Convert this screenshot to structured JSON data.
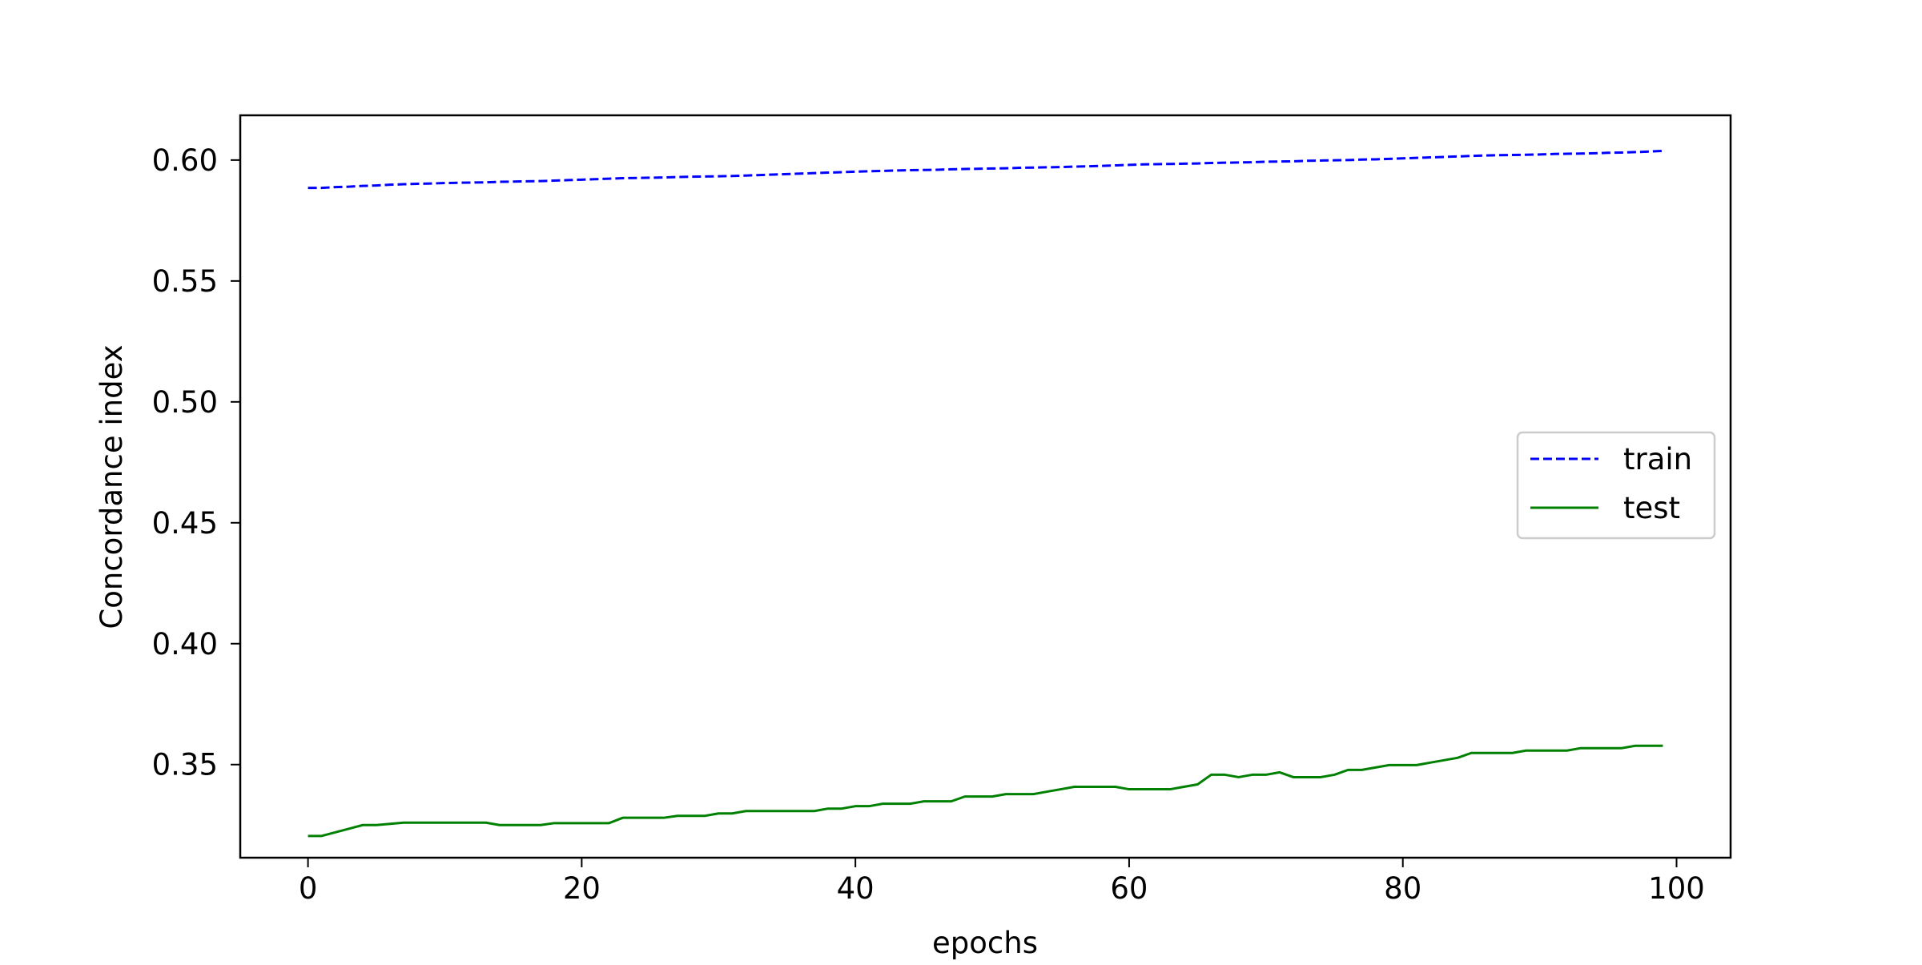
{
  "chart_data": {
    "type": "line",
    "title": "",
    "xlabel": "epochs",
    "ylabel": "Concordance index",
    "xlim": [
      -4.95,
      103.95
    ],
    "ylim": [
      0.3115,
      0.6185
    ],
    "xticks": [
      0,
      20,
      40,
      60,
      80,
      100
    ],
    "yticks": [
      0.35,
      0.4,
      0.45,
      0.5,
      0.55,
      0.6
    ],
    "xtick_labels": [
      "0",
      "20",
      "40",
      "60",
      "80",
      "100"
    ],
    "ytick_labels": [
      "0.35",
      "0.40",
      "0.45",
      "0.50",
      "0.55",
      "0.60"
    ],
    "grid": false,
    "legend_position": "center-right",
    "x": [
      0,
      1,
      2,
      3,
      4,
      5,
      6,
      7,
      8,
      9,
      10,
      11,
      12,
      13,
      14,
      15,
      16,
      17,
      18,
      19,
      20,
      21,
      22,
      23,
      24,
      25,
      26,
      27,
      28,
      29,
      30,
      31,
      32,
      33,
      34,
      35,
      36,
      37,
      38,
      39,
      40,
      41,
      42,
      43,
      44,
      45,
      46,
      47,
      48,
      49,
      50,
      51,
      52,
      53,
      54,
      55,
      56,
      57,
      58,
      59,
      60,
      61,
      62,
      63,
      64,
      65,
      66,
      67,
      68,
      69,
      70,
      71,
      72,
      73,
      74,
      75,
      76,
      77,
      78,
      79,
      80,
      81,
      82,
      83,
      84,
      85,
      86,
      87,
      88,
      89,
      90,
      91,
      92,
      93,
      94,
      95,
      96,
      97,
      98,
      99
    ],
    "series": [
      {
        "name": "train",
        "color": "#0000ff",
        "linestyle": "dashed",
        "values": [
          0.5885,
          0.5885,
          0.5888,
          0.589,
          0.5893,
          0.5895,
          0.5898,
          0.59,
          0.5902,
          0.5903,
          0.5905,
          0.5906,
          0.5907,
          0.5908,
          0.591,
          0.5911,
          0.5912,
          0.5913,
          0.5915,
          0.5917,
          0.5919,
          0.5921,
          0.5923,
          0.5925,
          0.5926,
          0.5927,
          0.5928,
          0.593,
          0.5931,
          0.5932,
          0.5933,
          0.5934,
          0.5936,
          0.5938,
          0.594,
          0.5942,
          0.5944,
          0.5946,
          0.5948,
          0.595,
          0.5952,
          0.5954,
          0.5955,
          0.5957,
          0.5958,
          0.5959,
          0.596,
          0.5962,
          0.5963,
          0.5964,
          0.5965,
          0.5966,
          0.5968,
          0.5969,
          0.597,
          0.5971,
          0.5973,
          0.5974,
          0.5976,
          0.5978,
          0.598,
          0.5982,
          0.5983,
          0.5984,
          0.5985,
          0.5986,
          0.5988,
          0.5989,
          0.599,
          0.5991,
          0.5993,
          0.5994,
          0.5995,
          0.5997,
          0.5998,
          0.5999,
          0.6,
          0.6002,
          0.6003,
          0.6005,
          0.6007,
          0.6009,
          0.6011,
          0.6013,
          0.6015,
          0.6017,
          0.6019,
          0.602,
          0.6021,
          0.6022,
          0.6023,
          0.6025,
          0.6026,
          0.6027,
          0.6028,
          0.603,
          0.6031,
          0.6033,
          0.6035,
          0.6038
        ]
      },
      {
        "name": "test",
        "color": "#008000",
        "linestyle": "solid",
        "values": [
          0.3205,
          0.3205,
          0.322,
          0.3235,
          0.325,
          0.325,
          0.3255,
          0.326,
          0.326,
          0.326,
          0.326,
          0.326,
          0.326,
          0.326,
          0.325,
          0.325,
          0.325,
          0.325,
          0.3258,
          0.3258,
          0.3258,
          0.3258,
          0.3258,
          0.328,
          0.328,
          0.328,
          0.328,
          0.3288,
          0.3288,
          0.3288,
          0.3298,
          0.3298,
          0.3308,
          0.3308,
          0.3308,
          0.3308,
          0.3308,
          0.3308,
          0.3318,
          0.3318,
          0.3328,
          0.3328,
          0.3338,
          0.3338,
          0.3338,
          0.3348,
          0.3348,
          0.3348,
          0.3368,
          0.3368,
          0.3368,
          0.3378,
          0.3378,
          0.3378,
          0.3388,
          0.3398,
          0.3408,
          0.3408,
          0.3408,
          0.3408,
          0.3398,
          0.3398,
          0.3398,
          0.3398,
          0.3408,
          0.3418,
          0.3458,
          0.3458,
          0.3448,
          0.3458,
          0.3458,
          0.3468,
          0.3448,
          0.3448,
          0.3448,
          0.3458,
          0.3478,
          0.3478,
          0.3488,
          0.3498,
          0.3498,
          0.3498,
          0.3508,
          0.3518,
          0.3528,
          0.3548,
          0.3548,
          0.3548,
          0.3548,
          0.3558,
          0.3558,
          0.3558,
          0.3558,
          0.3568,
          0.3568,
          0.3568,
          0.3568,
          0.3578,
          0.3578,
          0.3578
        ]
      }
    ]
  }
}
